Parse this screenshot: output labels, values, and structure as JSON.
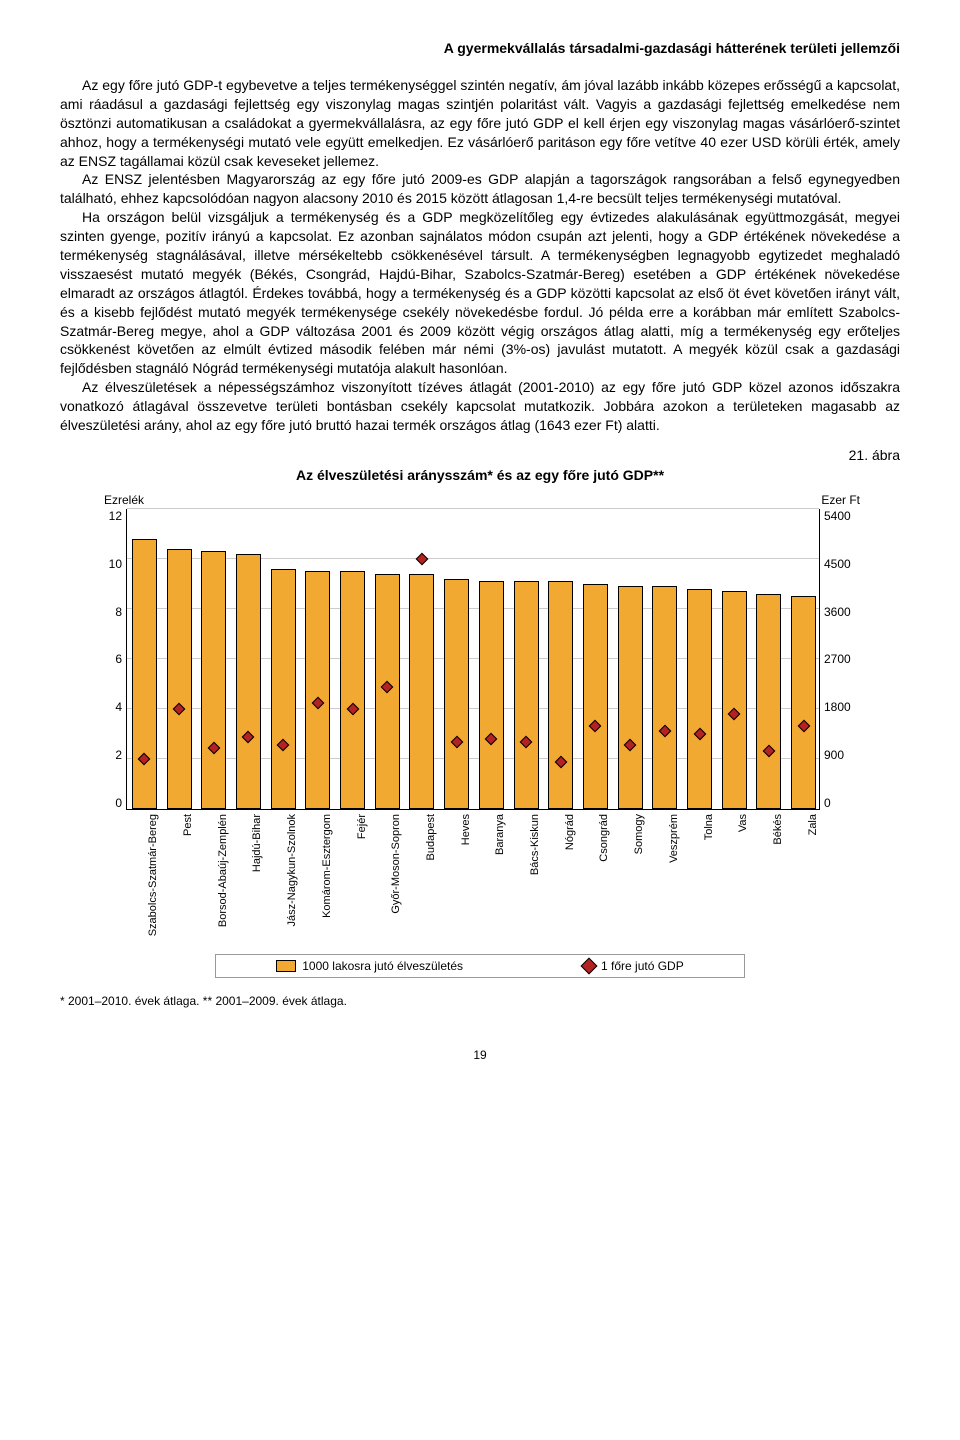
{
  "header": "A gyermekvállalás társadalmi-gazdasági hátterének területi jellemzői",
  "paragraphs": [
    "Az egy főre jutó GDP-t egybevetve a teljes termékenységgel szintén negatív, ám jóval lazább inkább közepes erősségű a kapcsolat, ami ráadásul a gazdasági fejlettség egy viszonylag magas szintjén polaritást vált. Vagyis a gazdasági fejlettség emelkedése nem ösztönzi automatikusan a családokat a gyermekvállalásra, az egy főre jutó GDP el kell érjen egy viszonylag magas vásárlóerő-szintet ahhoz, hogy a termékenységi mutató vele együtt emelkedjen. Ez vásárlóerő paritáson egy főre vetítve 40 ezer USD körüli érték, amely az ENSZ tagállamai közül csak keveseket jellemez.",
    "Az ENSZ jelentésben Magyarország az egy főre jutó 2009-es GDP alapján a tagországok rangsorában a felső egynegyedben található, ehhez kapcsolódóan nagyon alacsony 2010 és 2015 között átlagosan 1,4-re becsült teljes termékenységi mutatóval.",
    "Ha országon belül vizsgáljuk a termékenység és a GDP megközelítőleg egy évtizedes alakulásának együttmozgását, megyei szinten gyenge, pozitív irányú a kapcsolat. Ez azonban sajnálatos módon csupán azt jelenti, hogy a GDP értékének növekedése a termékenység stagnálásával, illetve mérsékeltebb csökkenésével társult. A termékenységben legnagyobb egytizedet meghaladó visszaesést mutató megyék (Békés, Csongrád, Hajdú-Bihar, Szabolcs-Szatmár-Bereg) esetében a GDP értékének növekedése elmaradt az országos átlagtól. Érdekes továbbá, hogy a termékenység és a GDP közötti kapcsolat az első öt évet követően irányt vált, és a kisebb fejlődést mutató megyék termékenysége csekély növekedésbe fordul. Jó példa erre a korábban már említett Szabolcs-Szatmár-Bereg megye, ahol a GDP változása 2001 és 2009 között végig országos átlag alatti, míg a termékenység egy erőteljes csökkenést követően az elmúlt évtized második felében már némi (3%-os) javulást mutatott. A megyék közül csak a gazdasági fejlődésben stagnáló Nógrád termékenységi mutatója alakult hasonlóan.",
    "Az élveszületések a népességszámhoz viszonyított tízéves átlagát (2001-2010) az egy főre jutó GDP közel azonos időszakra vonatkozó átlagával összevetve területi bontásban csekély kapcsolat mutatkozik. Jobbára azokon a területeken magasabb az élveszületési arány, ahol az egy főre jutó bruttó hazai termék országos átlag (1643 ezer Ft) alatti."
  ],
  "figure_label": "21. ábra",
  "chart": {
    "title": "Az élveszületési aránysszám* és az egy főre jutó GDP**",
    "left_axis_label": "Ezrelék",
    "right_axis_label": "Ezer Ft",
    "left_ticks": [
      "12",
      "10",
      "8",
      "6",
      "4",
      "2",
      "0"
    ],
    "right_ticks": [
      "5400",
      "4500",
      "3600",
      "2700",
      "1800",
      "900",
      "0"
    ],
    "left_max": 12,
    "right_max": 5400,
    "bar_color": "#f2a931",
    "marker_color": "#b22222",
    "categories": [
      {
        "label": "Szabolcs-Szatmár-Bereg",
        "bar": 10.8,
        "gdp": 900
      },
      {
        "label": "Pest",
        "bar": 10.4,
        "gdp": 1800
      },
      {
        "label": "Borsod-Abaúj-Zemplén",
        "bar": 10.3,
        "gdp": 1100
      },
      {
        "label": "Hajdú-Bihar",
        "bar": 10.2,
        "gdp": 1300
      },
      {
        "label": "Jász-Nagykun-Szolnok",
        "bar": 9.6,
        "gdp": 1150
      },
      {
        "label": "Komárom-Esztergom",
        "bar": 9.5,
        "gdp": 1900
      },
      {
        "label": "Fejér",
        "bar": 9.5,
        "gdp": 1800
      },
      {
        "label": "Győr-Moson-Sopron",
        "bar": 9.4,
        "gdp": 2200
      },
      {
        "label": "Budapest",
        "bar": 9.4,
        "gdp": 4500
      },
      {
        "label": "Heves",
        "bar": 9.2,
        "gdp": 1200
      },
      {
        "label": "Baranya",
        "bar": 9.1,
        "gdp": 1250
      },
      {
        "label": "Bács-Kiskun",
        "bar": 9.1,
        "gdp": 1200
      },
      {
        "label": "Nógrád",
        "bar": 9.1,
        "gdp": 850
      },
      {
        "label": "Csongrád",
        "bar": 9.0,
        "gdp": 1500
      },
      {
        "label": "Somogy",
        "bar": 8.9,
        "gdp": 1150
      },
      {
        "label": "Veszprém",
        "bar": 8.9,
        "gdp": 1400
      },
      {
        "label": "Tolna",
        "bar": 8.8,
        "gdp": 1350
      },
      {
        "label": "Vas",
        "bar": 8.7,
        "gdp": 1700
      },
      {
        "label": "Békés",
        "bar": 8.6,
        "gdp": 1050
      },
      {
        "label": "Zala",
        "bar": 8.5,
        "gdp": 1500
      }
    ],
    "legend": {
      "bar_label": "1000 lakosra jutó élveszületés",
      "marker_label": "1 főre jutó GDP"
    }
  },
  "footnote": "* 2001–2010. évek átlaga. ** 2001–2009. évek átlaga.",
  "page_number": "19"
}
